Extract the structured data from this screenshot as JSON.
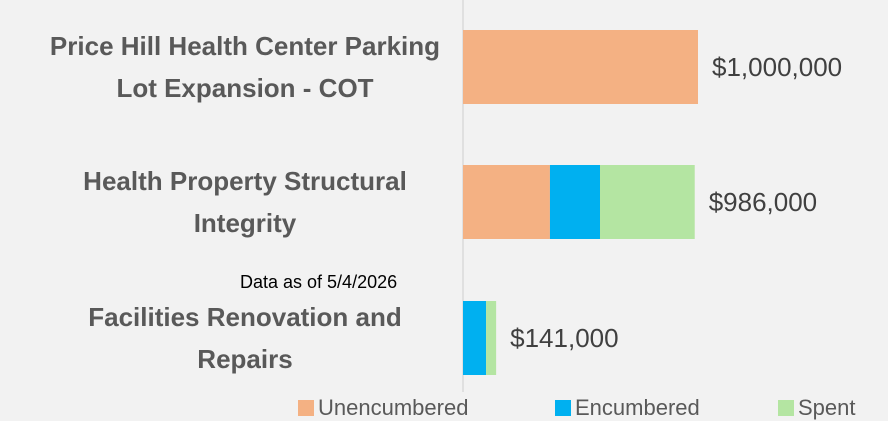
{
  "chart_data": {
    "type": "stacked-barh",
    "categories": [
      "Price Hill Health Center Parking Lot Expansion - COT",
      "Health Property Structural Integrity",
      "Facilities Renovation and Repairs"
    ],
    "series": [
      {
        "name": "Unencumbered",
        "color": "#f4b183",
        "values": [
          1000000,
          370000,
          0
        ]
      },
      {
        "name": "Encumbered",
        "color": "#00b0f0",
        "values": [
          0,
          213000,
          98000
        ]
      },
      {
        "name": "Spent",
        "color": "#b4e5a2",
        "values": [
          0,
          403000,
          43000
        ]
      }
    ],
    "totals": [
      1000000,
      986000,
      141000
    ],
    "total_labels": [
      "$1,000,000",
      "$986,000",
      "$141,000"
    ],
    "annotation": "Data as of 5/4/2026",
    "xlim": [
      0,
      1000000
    ],
    "legend": "bottom"
  }
}
